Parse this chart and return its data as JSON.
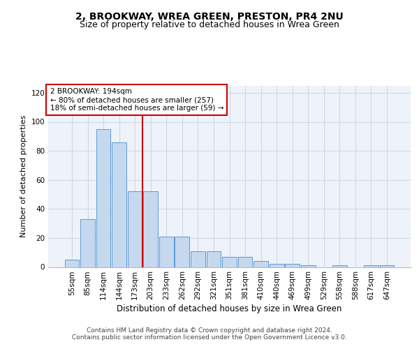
{
  "title": "2, BROOKWAY, WREA GREEN, PRESTON, PR4 2NU",
  "subtitle": "Size of property relative to detached houses in Wrea Green",
  "xlabel": "Distribution of detached houses by size in Wrea Green",
  "ylabel": "Number of detached properties",
  "categories": [
    "55sqm",
    "85sqm",
    "114sqm",
    "144sqm",
    "173sqm",
    "203sqm",
    "233sqm",
    "262sqm",
    "292sqm",
    "321sqm",
    "351sqm",
    "381sqm",
    "410sqm",
    "440sqm",
    "469sqm",
    "499sqm",
    "529sqm",
    "558sqm",
    "588sqm",
    "617sqm",
    "647sqm"
  ],
  "values": [
    5,
    33,
    95,
    86,
    52,
    52,
    21,
    21,
    11,
    11,
    7,
    7,
    4,
    2,
    2,
    1,
    0,
    1,
    0,
    1,
    1
  ],
  "bar_color": "#c5d8ee",
  "bar_edgecolor": "#5b9bd5",
  "vline_color": "#cc0000",
  "vline_pos": 4.5,
  "annotation_text": "2 BROOKWAY: 194sqm\n← 80% of detached houses are smaller (257)\n18% of semi-detached houses are larger (59) →",
  "annotation_box_color": "#ffffff",
  "annotation_box_edgecolor": "#cc0000",
  "ylim": [
    0,
    125
  ],
  "yticks": [
    0,
    20,
    40,
    60,
    80,
    100,
    120
  ],
  "footer1": "Contains HM Land Registry data © Crown copyright and database right 2024.",
  "footer2": "Contains public sector information licensed under the Open Government Licence v3.0.",
  "bg_color": "#eef2f9",
  "fig_bg_color": "#ffffff",
  "grid_color": "#d0d8e8",
  "title_fontsize": 10,
  "subtitle_fontsize": 9,
  "xlabel_fontsize": 8.5,
  "ylabel_fontsize": 8,
  "tick_fontsize": 7.5,
  "footer_fontsize": 6.5
}
